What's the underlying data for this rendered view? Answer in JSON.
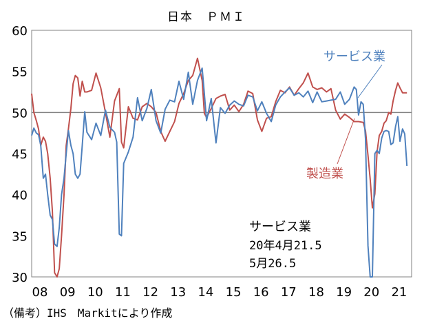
{
  "chart_data": {
    "type": "line",
    "title": "日本　ＰＭＩ",
    "ylim": [
      30,
      60
    ],
    "yticks": [
      30,
      35,
      40,
      45,
      50,
      55,
      60
    ],
    "xlim": [
      2008,
      2021.75
    ],
    "xticks": [
      {
        "value": 2008,
        "label": "08"
      },
      {
        "value": 2009,
        "label": "09"
      },
      {
        "value": 2010,
        "label": "10"
      },
      {
        "value": 2011,
        "label": "11"
      },
      {
        "value": 2012,
        "label": "12"
      },
      {
        "value": 2013,
        "label": "13"
      },
      {
        "value": 2014,
        "label": "14"
      },
      {
        "value": 2015,
        "label": "15"
      },
      {
        "value": 2016,
        "label": "16"
      },
      {
        "value": 2017,
        "label": "17"
      },
      {
        "value": 2018,
        "label": "18"
      },
      {
        "value": 2019,
        "label": "19"
      },
      {
        "value": 2020,
        "label": "20"
      },
      {
        "value": 2021,
        "label": "21"
      }
    ],
    "reference_line": 50,
    "grid": false,
    "series": [
      {
        "name": "サービス業",
        "color": "#4f81bd",
        "x": [
          2008.0,
          2008.08,
          2008.17,
          2008.25,
          2008.33,
          2008.42,
          2008.5,
          2008.58,
          2008.67,
          2008.75,
          2008.83,
          2008.92,
          2009.0,
          2009.08,
          2009.17,
          2009.25,
          2009.33,
          2009.42,
          2009.5,
          2009.58,
          2009.67,
          2009.75,
          2009.83,
          2009.92,
          2010.0,
          2010.17,
          2010.33,
          2010.5,
          2010.67,
          2010.83,
          2011.0,
          2011.08,
          2011.17,
          2011.25,
          2011.33,
          2011.5,
          2011.67,
          2011.83,
          2012.0,
          2012.17,
          2012.33,
          2012.5,
          2012.67,
          2012.83,
          2013.0,
          2013.17,
          2013.33,
          2013.5,
          2013.67,
          2013.83,
          2014.0,
          2014.17,
          2014.25,
          2014.33,
          2014.5,
          2014.67,
          2014.83,
          2015.0,
          2015.17,
          2015.33,
          2015.5,
          2015.67,
          2015.83,
          2016.0,
          2016.17,
          2016.33,
          2016.5,
          2016.67,
          2016.83,
          2017.0,
          2017.17,
          2017.33,
          2017.5,
          2017.67,
          2017.83,
          2018.0,
          2018.17,
          2018.33,
          2018.5,
          2018.67,
          2018.83,
          2019.0,
          2019.17,
          2019.33,
          2019.5,
          2019.67,
          2019.75,
          2019.83,
          2019.92,
          2020.0,
          2020.08,
          2020.17,
          2020.25,
          2020.33,
          2020.42,
          2020.5,
          2020.58,
          2020.67,
          2020.75,
          2020.83,
          2020.92,
          2021.0,
          2021.08,
          2021.17,
          2021.25,
          2021.33,
          2021.42,
          2021.5,
          2021.58
        ],
        "values": [
          47.2,
          48.1,
          47.5,
          47.3,
          46.0,
          42.0,
          42.5,
          40.0,
          37.5,
          37.0,
          34.0,
          33.7,
          36.0,
          40.0,
          42.0,
          45.0,
          47.8,
          46.0,
          45.0,
          42.5,
          42.0,
          42.5,
          46.0,
          50.1,
          47.6,
          46.7,
          48.7,
          47.2,
          50.3,
          48.2,
          47.6,
          46.4,
          35.2,
          35.0,
          43.8,
          45.2,
          47.0,
          51.8,
          49.0,
          50.5,
          52.8,
          49.0,
          47.5,
          50.4,
          51.5,
          51.3,
          53.8,
          51.6,
          54.9,
          51.0,
          53.9,
          55.4,
          52.3,
          49.0,
          51.7,
          46.3,
          50.6,
          49.9,
          50.9,
          51.4,
          51.0,
          50.8,
          52.1,
          51.9,
          50.2,
          51.3,
          49.9,
          48.9,
          50.9,
          51.9,
          52.5,
          53.0,
          52.1,
          52.4,
          51.9,
          52.6,
          51.2,
          52.5,
          51.3,
          51.4,
          51.5,
          51.6,
          52.5,
          51.0,
          51.6,
          53.1,
          52.8,
          49.7,
          51.3,
          51.0,
          46.8,
          33.8,
          21.5,
          26.5,
          45.0,
          45.4,
          45.0,
          46.9,
          47.7,
          47.8,
          47.7,
          46.1,
          46.3,
          48.3,
          49.5,
          46.5,
          48.0,
          47.4,
          43.5
        ]
      },
      {
        "name": "製造業",
        "color": "#c0504d",
        "x": [
          2008.0,
          2008.08,
          2008.17,
          2008.25,
          2008.33,
          2008.42,
          2008.5,
          2008.58,
          2008.67,
          2008.75,
          2008.83,
          2008.92,
          2009.0,
          2009.08,
          2009.17,
          2009.25,
          2009.33,
          2009.42,
          2009.5,
          2009.58,
          2009.67,
          2009.75,
          2009.83,
          2009.92,
          2010.0,
          2010.17,
          2010.33,
          2010.5,
          2010.67,
          2010.83,
          2011.0,
          2011.17,
          2011.25,
          2011.33,
          2011.5,
          2011.67,
          2011.83,
          2012.0,
          2012.17,
          2012.33,
          2012.5,
          2012.67,
          2012.83,
          2013.0,
          2013.17,
          2013.33,
          2013.5,
          2013.67,
          2013.83,
          2014.0,
          2014.17,
          2014.25,
          2014.33,
          2014.5,
          2014.67,
          2014.83,
          2015.0,
          2015.17,
          2015.33,
          2015.5,
          2015.67,
          2015.83,
          2016.0,
          2016.17,
          2016.33,
          2016.5,
          2016.67,
          2016.83,
          2017.0,
          2017.17,
          2017.33,
          2017.5,
          2017.67,
          2017.83,
          2018.0,
          2018.17,
          2018.33,
          2018.5,
          2018.67,
          2018.83,
          2019.0,
          2019.17,
          2019.33,
          2019.5,
          2019.67,
          2019.83,
          2020.0,
          2020.08,
          2020.17,
          2020.25,
          2020.33,
          2020.42,
          2020.5,
          2020.58,
          2020.67,
          2020.75,
          2020.83,
          2020.92,
          2021.0,
          2021.08,
          2021.17,
          2021.25,
          2021.33,
          2021.42,
          2021.5,
          2021.58
        ],
        "values": [
          52.3,
          50.0,
          49.0,
          48.0,
          46.0,
          47.0,
          46.5,
          45.0,
          42.0,
          38.0,
          30.5,
          29.6,
          31.0,
          35.0,
          40.0,
          46.0,
          48.0,
          50.5,
          53.5,
          54.5,
          54.2,
          52.0,
          53.8,
          52.5,
          52.5,
          52.7,
          54.8,
          53.0,
          50.0,
          47.0,
          51.4,
          52.9,
          46.4,
          45.7,
          50.7,
          49.3,
          49.1,
          50.7,
          51.1,
          50.7,
          50.0,
          47.7,
          46.5,
          47.7,
          48.9,
          51.1,
          52.3,
          53.9,
          54.5,
          56.6,
          53.9,
          49.9,
          49.4,
          50.5,
          51.7,
          52.0,
          52.2,
          50.3,
          50.9,
          50.1,
          51.0,
          52.6,
          52.3,
          49.1,
          47.7,
          49.3,
          49.5,
          51.3,
          52.7,
          52.4,
          53.1,
          52.1,
          52.9,
          53.6,
          54.8,
          53.1,
          52.8,
          53.0,
          52.5,
          52.9,
          50.3,
          49.2,
          49.8,
          49.4,
          48.9,
          48.9,
          48.8,
          47.8,
          44.8,
          41.9,
          38.4,
          40.1,
          45.2,
          47.2,
          47.7,
          48.7,
          49.0,
          50.0,
          49.8,
          51.4,
          52.7,
          53.6,
          53.0,
          52.4,
          52.4,
          52.4
        ]
      }
    ],
    "labels": {
      "service": "サービス業",
      "manufacturing": "製造業"
    },
    "annotation": {
      "heading": "サービス業",
      "line1": "20年4月21.5",
      "line2": "5月26.5"
    },
    "source": "（備考）IHS　Markitにより作成"
  }
}
